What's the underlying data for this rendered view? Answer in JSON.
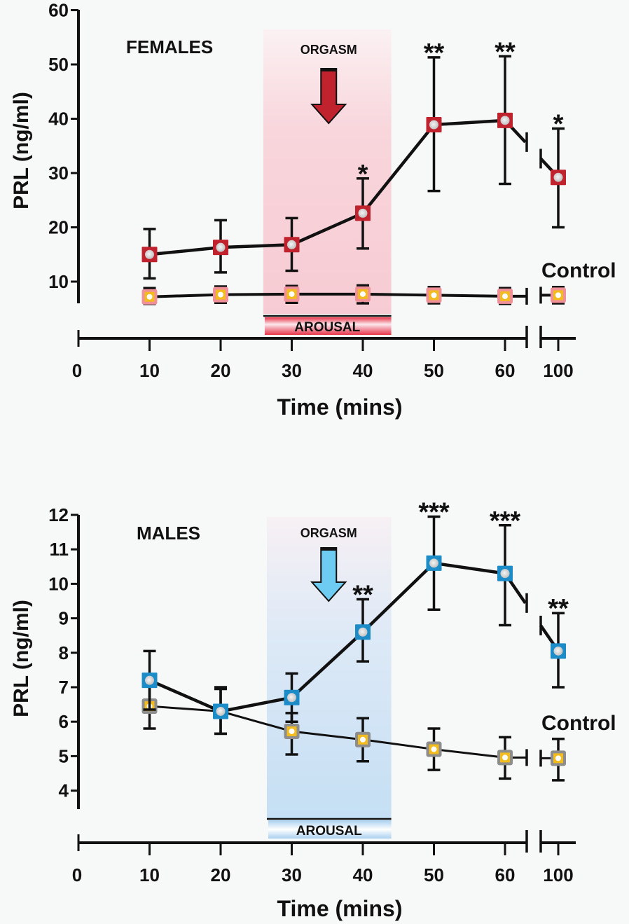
{
  "chart_data": [
    {
      "type": "line",
      "panel": "top",
      "title": "FEMALES",
      "xlabel": "Time (mins)",
      "ylabel": "PRL (ng/ml)",
      "x": [
        10,
        20,
        30,
        40,
        50,
        60,
        100
      ],
      "x_ticks": [
        0,
        10,
        20,
        30,
        40,
        50,
        60,
        100
      ],
      "x_tick_labels": [
        "0",
        "10",
        "20",
        "30",
        "40",
        "50",
        "60",
        "100"
      ],
      "x_axis_break": "between 60 and 100",
      "y_ticks": [
        10,
        20,
        30,
        40,
        50,
        60
      ],
      "y_tick_labels": [
        "10",
        "20",
        "30",
        "40",
        "50",
        "60"
      ],
      "ylim": [
        5.5,
        60
      ],
      "grid": false,
      "series": [
        {
          "name": "Arousal/Orgasm",
          "marker_color": "#c0222e",
          "values": [
            15.0,
            16.3,
            16.8,
            22.6,
            38.9,
            39.7,
            29.2
          ],
          "err_upper": [
            19.7,
            21.3,
            21.7,
            29.0,
            51.3,
            51.5,
            38.2
          ],
          "err_lower": [
            10.6,
            11.7,
            12.0,
            16.1,
            26.7,
            28.0,
            20.0
          ],
          "significance": [
            "",
            "",
            "",
            "*",
            "**",
            "**",
            "*"
          ]
        },
        {
          "name": "Control",
          "marker_color": "#f09098",
          "marker_fill": "#f2bb1e",
          "values": [
            7.2,
            7.6,
            7.7,
            7.7,
            7.5,
            7.3,
            7.5
          ],
          "err_upper": [
            8.8,
            9.1,
            9.2,
            9.3,
            9.0,
            8.8,
            9.0
          ],
          "err_lower": [
            5.9,
            6.1,
            6.1,
            6.0,
            6.0,
            5.9,
            6.0
          ]
        }
      ],
      "series_label": "Control",
      "annotations": {
        "orgasm_label": "ORGASM",
        "orgasm_x": 35,
        "arousal_label": "AROUSAL",
        "arousal_range": [
          26,
          44
        ]
      },
      "accent": "#c0222e",
      "band_color": "#f7cdd4"
    },
    {
      "type": "line",
      "panel": "bottom",
      "title": "MALES",
      "xlabel": "Time (mins)",
      "ylabel": "PRL (ng/ml)",
      "x": [
        10,
        20,
        30,
        40,
        50,
        60,
        100
      ],
      "x_ticks": [
        0,
        10,
        20,
        30,
        40,
        50,
        60,
        100
      ],
      "x_tick_labels": [
        "0",
        "10",
        "20",
        "30",
        "40",
        "50",
        "60",
        "100"
      ],
      "x_axis_break": "between 60 and 100",
      "y_ticks": [
        4,
        5,
        6,
        7,
        8,
        9,
        10,
        11,
        12
      ],
      "y_tick_labels": [
        "4",
        "5",
        "6",
        "7",
        "8",
        "9",
        "10",
        "11",
        "12"
      ],
      "ylim": [
        3.5,
        12
      ],
      "grid": false,
      "series": [
        {
          "name": "Arousal/Orgasm",
          "marker_color": "#1b8cc8",
          "values": [
            7.2,
            6.3,
            6.7,
            8.6,
            10.6,
            10.3,
            8.05
          ],
          "err_upper": [
            8.05,
            7.0,
            7.4,
            9.55,
            11.95,
            11.7,
            9.15
          ],
          "err_lower": [
            6.35,
            5.65,
            6.0,
            7.75,
            9.25,
            8.8,
            7.0
          ]
        },
        {
          "name": "Control",
          "marker_color": "#8d8d8d",
          "marker_fill": "#f2bb1e",
          "values": [
            6.45,
            6.3,
            5.72,
            5.48,
            5.2,
            4.96,
            4.94
          ],
          "err_upper": [
            7.05,
            6.95,
            6.25,
            6.1,
            5.8,
            5.55,
            5.5
          ],
          "err_lower": [
            5.8,
            5.65,
            5.05,
            4.85,
            4.6,
            4.35,
            4.3
          ]
        }
      ],
      "significance_labels": [
        "",
        "",
        "",
        "**",
        "***",
        "***",
        "**"
      ],
      "series_label": "Control",
      "annotations": {
        "orgasm_label": "ORGASM",
        "orgasm_x": 35,
        "arousal_label": "AROUSAL",
        "arousal_range": [
          26.5,
          44
        ]
      },
      "accent": "#1b8cc8",
      "band_color": "#cfe3f5"
    }
  ]
}
